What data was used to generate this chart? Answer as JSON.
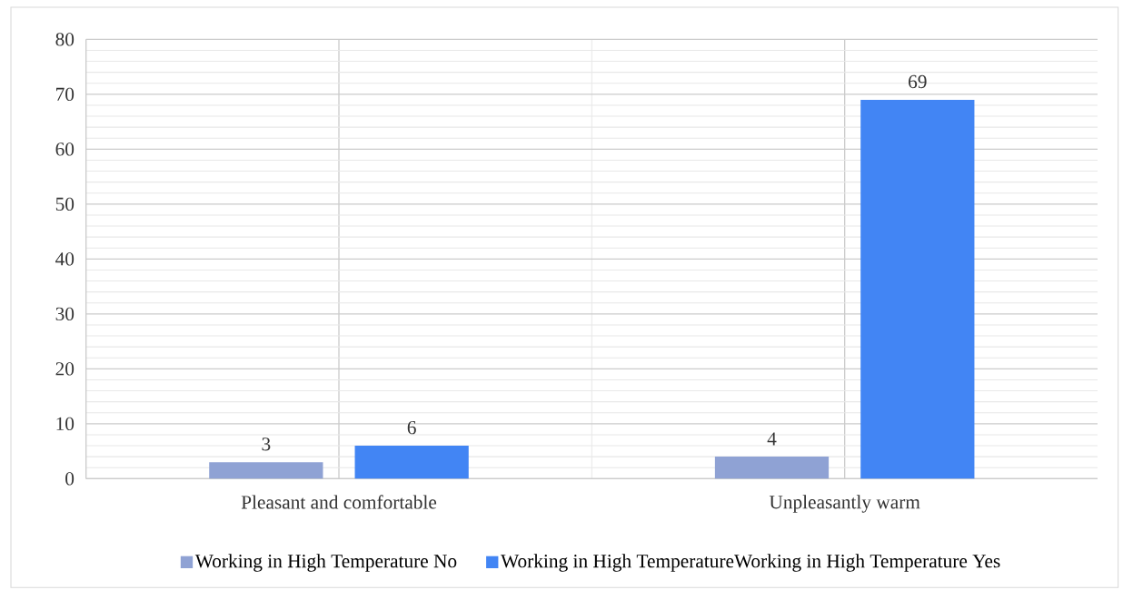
{
  "chart_data": {
    "type": "bar",
    "categories": [
      "Pleasant and comfortable",
      "Unpleasantly warm"
    ],
    "series": [
      {
        "name": "Working in High Temperature No",
        "color": "#8fa2d4",
        "values": [
          3,
          4
        ]
      },
      {
        "name": "Working in High TemperatureWorking in High Temperature Yes",
        "color": "#4285f4",
        "values": [
          6,
          69
        ]
      }
    ],
    "ylim": [
      0,
      80
    ],
    "yticks": [
      0,
      10,
      20,
      30,
      40,
      50,
      60,
      70,
      80
    ],
    "grid": true,
    "legend": "bottom",
    "data_labels": true
  }
}
